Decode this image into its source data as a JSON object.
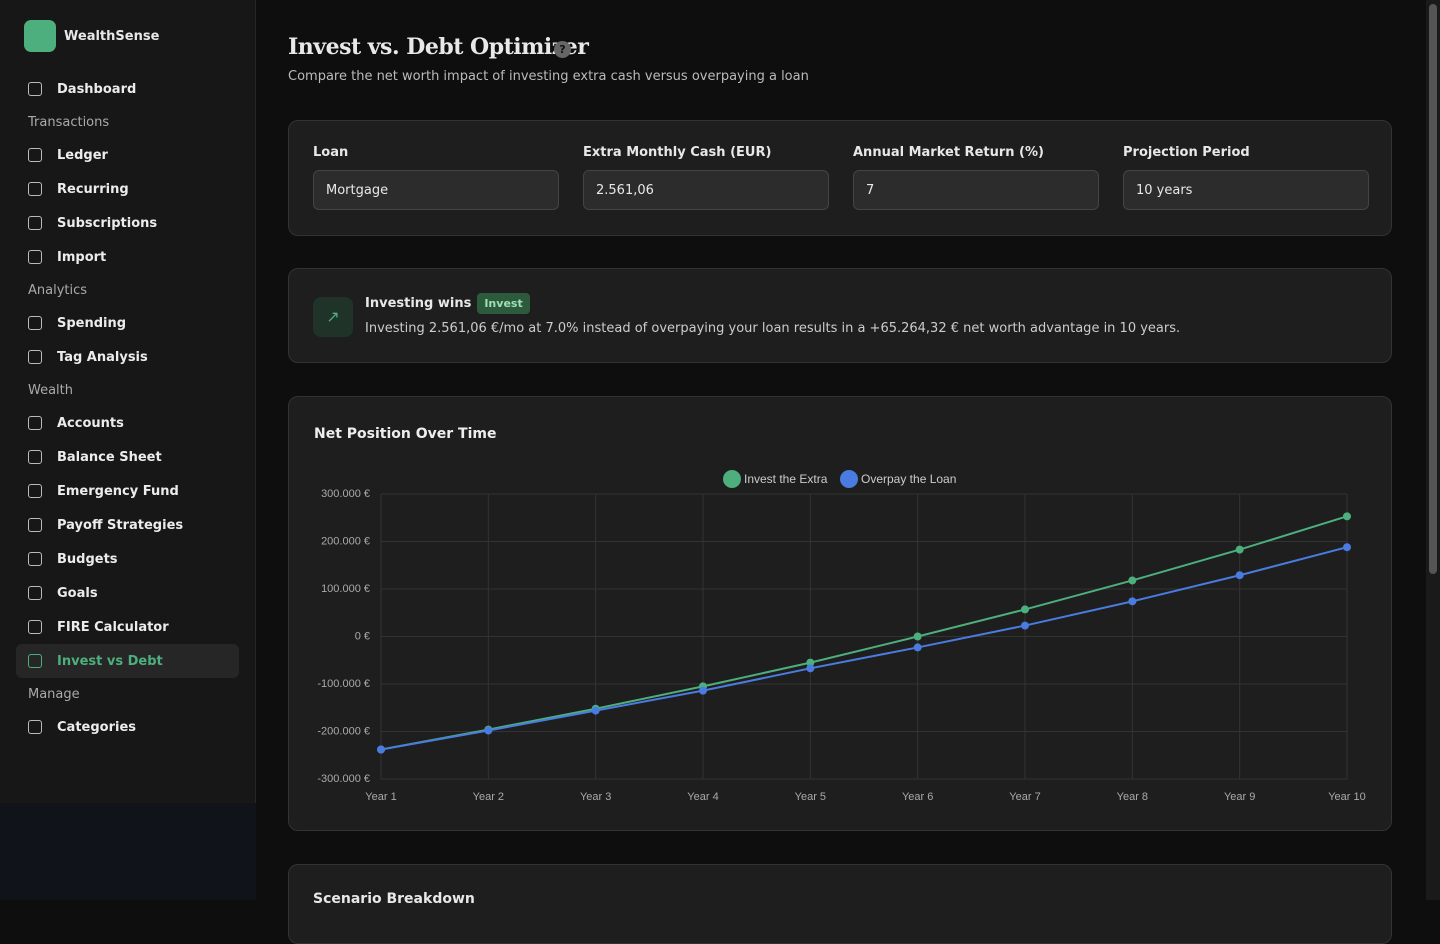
{
  "sidebar": {
    "brand": "WealthSense",
    "nav": [
      "Dashboard",
      "Transactions",
      "Ledger",
      "Recurring",
      "Subscriptions",
      "Import",
      "Analytics",
      "Spending",
      "Tag Analysis",
      "Wealth",
      "Accounts",
      "Balance Sheet",
      "Emergency Fund",
      "Payoff Strategies",
      "Budgets",
      "Goals",
      "FIRE Calculator",
      "Invest vs Debt",
      "Manage",
      "Categories"
    ]
  },
  "header": {
    "title": "Invest vs. Debt Optimizer",
    "subtitle": "Compare the net worth impact of investing extra cash versus overpaying a loan"
  },
  "form": {
    "fields": [
      {
        "label": "Loan",
        "value": "Mortgage"
      },
      {
        "label": "Extra Monthly Cash (EUR)",
        "value": "2.561,06"
      },
      {
        "label": "Annual Market Return (%)",
        "value": "7"
      },
      {
        "label": "Projection Period",
        "value": "10 years"
      }
    ]
  },
  "result": {
    "title": "Investing wins",
    "badge": "Invest",
    "text": "Investing 2.561,06 €/mo at 7.0% instead of overpaying your loan results in a +65.264,32 € net worth advantage in 10 years."
  },
  "chart_card": {
    "title": "Net Position Over Time"
  },
  "chart_data": {
    "type": "line",
    "categories": [
      "Year 1",
      "Year 2",
      "Year 3",
      "Year 4",
      "Year 5",
      "Year 6",
      "Year 7",
      "Year 8",
      "Year 9",
      "Year 10"
    ],
    "series": [
      {
        "name": "Invest the Extra",
        "color": "#4caf7d",
        "values": [
          -238000,
          -196000,
          -152000,
          -105000,
          -55000,
          0,
          57000,
          118000,
          183000,
          253000
        ]
      },
      {
        "name": "Overpay the Loan",
        "color": "#4a7be0",
        "values": [
          -238000,
          -198000,
          -156000,
          -114000,
          -67000,
          -23000,
          23000,
          74000,
          129000,
          188000
        ]
      }
    ],
    "ylim": [
      -300000,
      300000
    ],
    "yticks": [
      {
        "value": -300000,
        "label": "-300.000 €"
      },
      {
        "value": -200000,
        "label": "-200.000 €"
      },
      {
        "value": -100000,
        "label": "-100.000 €"
      },
      {
        "value": 0,
        "label": "0 €"
      },
      {
        "value": 100000,
        "label": "100.000 €"
      },
      {
        "value": 200000,
        "label": "200.000 €"
      },
      {
        "value": 300000,
        "label": "300.000 €"
      }
    ],
    "grid": true,
    "legend": "top"
  },
  "breakdown": {
    "title": "Scenario Breakdown"
  }
}
